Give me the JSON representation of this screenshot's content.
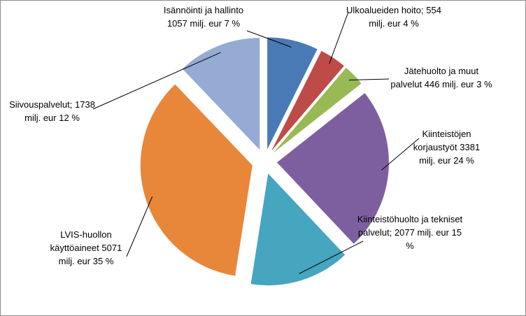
{
  "chart_data": {
    "type": "pie",
    "categories": [
      "Isännöinti ja hallinto",
      "Ulkoalueiden hoito;",
      "Jätehuolto ja muut palvelut",
      "Kiinteistöjen korjaustyöt",
      "Kiinteistöhuolto ja tekniset palvelut;",
      "LVIS-huollon käyttöaineet",
      "Siivouspalvelut;"
    ],
    "values": [
      1057,
      554,
      446,
      3381,
      2077,
      5071,
      1738
    ],
    "value_labels": [
      "1057 milj. eur",
      "554 milj. eur",
      "446 milj. eur",
      "3381 milj. eur",
      "2077 milj. eur",
      "5071 milj. eur",
      "1738 milj. eur"
    ],
    "percents": [
      7,
      4,
      3,
      24,
      15,
      35,
      12
    ],
    "percent_labels": [
      "7 %",
      "4 %",
      "3 %",
      "24 %",
      "15 %",
      "35 %",
      "12 %"
    ],
    "colors": [
      "#4a7ab5",
      "#be4b48",
      "#98b954",
      "#7d5fa0",
      "#46a5bf",
      "#e8873a",
      "#95abd4"
    ]
  }
}
